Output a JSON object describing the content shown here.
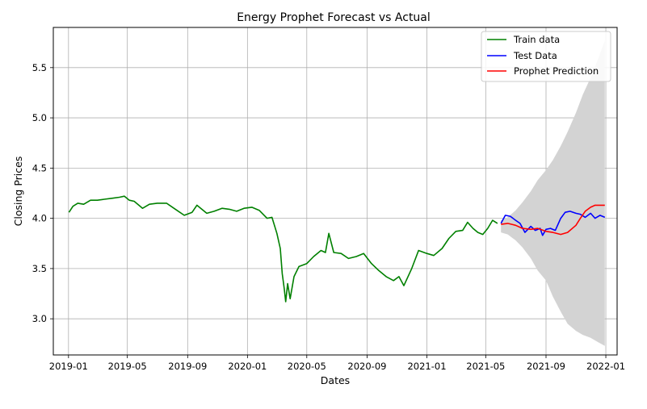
{
  "colors": {
    "train": "#008000",
    "test": "#0000ff",
    "prediction": "#ff0000",
    "confidence_band": "#d3d3d3",
    "grid": "#b0b0b0"
  },
  "chart_data": {
    "type": "line",
    "title": "Energy Prophet Forecast vs Actual",
    "xlabel": "Dates",
    "ylabel": "Closing Prices",
    "xlim": [
      "2018-12-01",
      "2022-01-24"
    ],
    "ylim": [
      2.64,
      5.9
    ],
    "grid": true,
    "legend_position": "top-right",
    "x_ticks": [
      "2019-01",
      "2019-05",
      "2019-09",
      "2020-01",
      "2020-05",
      "2020-09",
      "2021-01",
      "2021-05",
      "2021-09",
      "2022-01"
    ],
    "y_ticks": [
      "3.0",
      "3.5",
      "4.0",
      "4.5",
      "5.0",
      "5.5"
    ],
    "legend": [
      {
        "key": "train",
        "label": "Train data"
      },
      {
        "key": "test",
        "label": "Test Data"
      },
      {
        "key": "prediction",
        "label": "Prophet Prediction"
      }
    ],
    "series": [
      {
        "key": "train",
        "name": "Train data",
        "color": "#008000",
        "x": [
          "2019-01-02",
          "2019-01-10",
          "2019-01-20",
          "2019-02-01",
          "2019-02-15",
          "2019-03-01",
          "2019-03-15",
          "2019-04-01",
          "2019-04-15",
          "2019-04-25",
          "2019-05-05",
          "2019-05-15",
          "2019-06-01",
          "2019-06-15",
          "2019-07-01",
          "2019-07-20",
          "2019-08-10",
          "2019-08-25",
          "2019-09-10",
          "2019-09-20",
          "2019-10-10",
          "2019-10-25",
          "2019-11-10",
          "2019-11-25",
          "2019-12-10",
          "2019-12-25",
          "2020-01-10",
          "2020-01-25",
          "2020-02-10",
          "2020-02-20",
          "2020-03-01",
          "2020-03-08",
          "2020-03-12",
          "2020-03-16",
          "2020-03-19",
          "2020-03-23",
          "2020-03-28",
          "2020-04-05",
          "2020-04-15",
          "2020-05-01",
          "2020-05-15",
          "2020-05-30",
          "2020-06-08",
          "2020-06-15",
          "2020-06-25",
          "2020-07-10",
          "2020-07-25",
          "2020-08-10",
          "2020-08-25",
          "2020-09-10",
          "2020-09-25",
          "2020-10-10",
          "2020-10-25",
          "2020-11-05",
          "2020-11-15",
          "2020-12-01",
          "2020-12-15",
          "2021-01-01",
          "2021-01-15",
          "2021-02-01",
          "2021-02-15",
          "2021-03-01",
          "2021-03-15",
          "2021-03-25",
          "2021-04-05",
          "2021-04-15",
          "2021-04-25",
          "2021-05-05",
          "2021-05-15",
          "2021-05-25"
        ],
        "values": [
          4.06,
          4.12,
          4.15,
          4.14,
          4.18,
          4.18,
          4.19,
          4.2,
          4.21,
          4.22,
          4.18,
          4.17,
          4.1,
          4.14,
          4.15,
          4.15,
          4.08,
          4.03,
          4.06,
          4.13,
          4.05,
          4.07,
          4.1,
          4.09,
          4.07,
          4.1,
          4.11,
          4.08,
          4.0,
          4.01,
          3.85,
          3.7,
          3.45,
          3.3,
          3.17,
          3.35,
          3.2,
          3.42,
          3.52,
          3.55,
          3.62,
          3.68,
          3.66,
          3.85,
          3.66,
          3.65,
          3.6,
          3.62,
          3.65,
          3.55,
          3.48,
          3.42,
          3.38,
          3.42,
          3.33,
          3.5,
          3.68,
          3.65,
          3.63,
          3.7,
          3.8,
          3.87,
          3.88,
          3.96,
          3.9,
          3.86,
          3.84,
          3.9,
          3.98,
          3.95
        ]
      },
      {
        "key": "test",
        "name": "Test Data",
        "color": "#0000ff",
        "x": [
          "2021-06-01",
          "2021-06-10",
          "2021-06-20",
          "2021-07-01",
          "2021-07-10",
          "2021-07-20",
          "2021-08-01",
          "2021-08-10",
          "2021-08-20",
          "2021-08-25",
          "2021-09-01",
          "2021-09-10",
          "2021-09-20",
          "2021-10-01",
          "2021-10-10",
          "2021-10-20",
          "2021-11-01",
          "2021-11-10",
          "2021-11-20",
          "2021-12-01",
          "2021-12-10",
          "2021-12-20",
          "2021-12-30"
        ],
        "values": [
          3.95,
          4.03,
          4.02,
          3.98,
          3.95,
          3.86,
          3.92,
          3.88,
          3.9,
          3.83,
          3.89,
          3.9,
          3.88,
          4.0,
          4.06,
          4.07,
          4.05,
          4.04,
          4.01,
          4.05,
          4.0,
          4.03,
          4.01
        ]
      },
      {
        "key": "prediction",
        "name": "Prophet Prediction",
        "color": "#ff0000",
        "x": [
          "2021-06-01",
          "2021-06-15",
          "2021-07-01",
          "2021-07-15",
          "2021-08-01",
          "2021-08-15",
          "2021-09-01",
          "2021-09-15",
          "2021-10-01",
          "2021-10-15",
          "2021-11-01",
          "2021-11-10",
          "2021-11-20",
          "2021-12-01",
          "2021-12-10",
          "2021-12-20",
          "2021-12-30"
        ],
        "values": [
          3.94,
          3.95,
          3.93,
          3.9,
          3.89,
          3.9,
          3.87,
          3.86,
          3.84,
          3.86,
          3.93,
          4.0,
          4.07,
          4.11,
          4.13,
          4.13,
          4.13
        ]
      }
    ],
    "confidence_band": {
      "color": "#d3d3d3",
      "x": [
        "2021-06-01",
        "2021-06-15",
        "2021-07-01",
        "2021-07-15",
        "2021-08-01",
        "2021-08-15",
        "2021-09-01",
        "2021-09-15",
        "2021-10-01",
        "2021-10-15",
        "2021-11-01",
        "2021-11-15",
        "2021-12-01",
        "2021-12-15",
        "2021-12-30"
      ],
      "upper": [
        3.98,
        4.01,
        4.08,
        4.16,
        4.27,
        4.38,
        4.48,
        4.58,
        4.72,
        4.86,
        5.05,
        5.23,
        5.4,
        5.57,
        5.77
      ],
      "lower": [
        3.86,
        3.84,
        3.78,
        3.71,
        3.6,
        3.48,
        3.38,
        3.22,
        3.07,
        2.95,
        2.88,
        2.84,
        2.81,
        2.77,
        2.73
      ]
    }
  }
}
